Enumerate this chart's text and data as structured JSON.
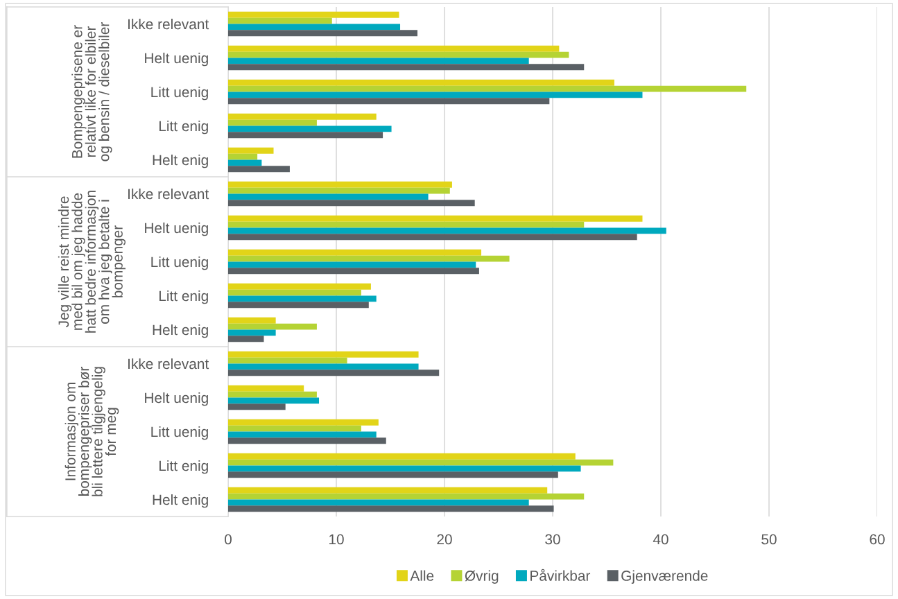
{
  "chart_data": {
    "type": "bar",
    "orientation": "horizontal",
    "categories": [
      "Ikke relevant",
      "Helt uenig",
      "Litt uenig",
      "Litt enig",
      "Helt enig",
      "Ikke relevant",
      "Helt uenig",
      "Litt uenig",
      "Litt enig",
      "Helt enig",
      "Ikke relevant",
      "Helt uenig",
      "Litt uenig",
      "Litt enig",
      "Helt enig"
    ],
    "annotations": [
      "Bompengeprisene er\nrelativt like for elbiler\nog bensin / dieselbiler",
      "Jeg ville reist mindre\nmed bil om jeg hadde\nhatt bedre informasjon\nom hva jeg betalte i\nbompenger",
      "Informasjon om\nbompengepriser bør\nbli lettere tilgjengelig\nfor meg"
    ],
    "series": [
      {
        "name": "Alle",
        "color": "#e2d418",
        "values": [
          15.8,
          30.6,
          35.7,
          13.7,
          4.2,
          20.7,
          38.3,
          23.4,
          13.2,
          4.4,
          17.6,
          7.0,
          13.9,
          32.1,
          29.5
        ]
      },
      {
        "name": "Øvrig",
        "color": "#b5d334",
        "values": [
          9.6,
          31.5,
          47.9,
          8.2,
          2.7,
          20.5,
          32.9,
          26.0,
          12.3,
          8.2,
          11.0,
          8.2,
          12.3,
          35.6,
          32.9
        ]
      },
      {
        "name": "Påvirkbar",
        "color": "#00a9be",
        "values": [
          15.9,
          27.8,
          38.3,
          15.1,
          3.1,
          18.5,
          40.5,
          22.9,
          13.7,
          4.4,
          17.6,
          8.4,
          13.7,
          32.6,
          27.8
        ]
      },
      {
        "name": "Gjenværende",
        "color": "#5a6065",
        "values": [
          17.5,
          32.9,
          29.7,
          14.3,
          5.7,
          22.8,
          37.8,
          23.2,
          13.0,
          3.3,
          19.5,
          5.3,
          14.6,
          30.5,
          30.1
        ]
      }
    ],
    "xlim": [
      0,
      60
    ],
    "xticks": [
      0,
      10,
      20,
      30,
      40,
      50,
      60
    ],
    "grid": "x",
    "legend": "bottom"
  }
}
